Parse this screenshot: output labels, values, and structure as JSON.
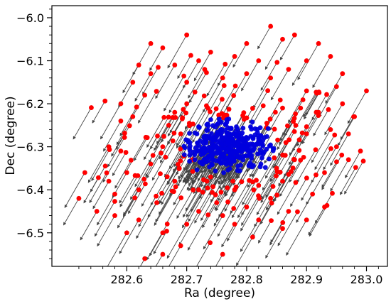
{
  "chart_data": {
    "type": "scatter",
    "title": "",
    "xlabel": "Ra (degree)",
    "ylabel": "Dec (degree)",
    "xlim": [
      282.475,
      283.035
    ],
    "ylim": [
      -6.578,
      -5.972
    ],
    "xticks": [
      282.6,
      282.7,
      282.8,
      282.9,
      283.0
    ],
    "xtick_labels": [
      "282.6",
      "282.7",
      "282.8",
      "282.9",
      "283.0"
    ],
    "yticks": [
      -6.5,
      -6.4,
      -6.3,
      -6.2,
      -6.1,
      -6.0
    ],
    "ytick_labels": [
      "−6.5",
      "−6.4",
      "−6.3",
      "−6.2",
      "−6.1",
      "−6.0"
    ],
    "grid": false,
    "legend": "none",
    "colors": {
      "outer": "#ff0000",
      "core": "#0000dd",
      "arrow": "#444444"
    },
    "series": [
      {
        "group": "outer stars (red)",
        "color": "#ff0000",
        "points": [
          [
            282.53,
            -6.36
          ],
          [
            282.52,
            -6.42
          ],
          [
            282.55,
            -6.45
          ],
          [
            282.57,
            -6.38
          ],
          [
            282.59,
            -6.31
          ],
          [
            282.58,
            -6.46
          ],
          [
            282.6,
            -6.5
          ],
          [
            282.62,
            -6.47
          ],
          [
            282.61,
            -6.23
          ],
          [
            282.63,
            -6.18
          ],
          [
            282.62,
            -6.11
          ],
          [
            282.64,
            -6.06
          ],
          [
            282.66,
            -6.07
          ],
          [
            282.7,
            -6.04
          ],
          [
            282.63,
            -6.56
          ],
          [
            282.66,
            -6.55
          ],
          [
            282.69,
            -6.53
          ],
          [
            282.76,
            -6.55
          ],
          [
            282.66,
            -6.5
          ],
          [
            282.72,
            -6.45
          ],
          [
            282.65,
            -6.43
          ],
          [
            282.68,
            -6.38
          ],
          [
            282.66,
            -6.3
          ],
          [
            282.68,
            -6.22
          ],
          [
            282.7,
            -6.15
          ],
          [
            282.72,
            -6.1
          ],
          [
            282.74,
            -6.08
          ],
          [
            282.78,
            -6.09
          ],
          [
            282.8,
            -6.06
          ],
          [
            282.84,
            -6.02
          ],
          [
            282.88,
            -6.04
          ],
          [
            282.92,
            -6.06
          ],
          [
            282.9,
            -6.1
          ],
          [
            282.94,
            -6.09
          ],
          [
            282.96,
            -6.13
          ],
          [
            282.9,
            -6.17
          ],
          [
            282.96,
            -6.2
          ],
          [
            282.98,
            -6.23
          ],
          [
            283.0,
            -6.17
          ],
          [
            282.97,
            -6.27
          ],
          [
            282.95,
            -6.3
          ],
          [
            282.97,
            -6.33
          ],
          [
            282.93,
            -6.36
          ],
          [
            282.91,
            -6.41
          ],
          [
            282.93,
            -6.44
          ],
          [
            282.9,
            -6.47
          ],
          [
            282.87,
            -6.45
          ],
          [
            282.84,
            -6.42
          ],
          [
            282.82,
            -6.47
          ],
          [
            282.78,
            -6.48
          ],
          [
            282.75,
            -6.43
          ],
          [
            282.72,
            -6.4
          ],
          [
            282.8,
            -6.44
          ],
          [
            282.86,
            -6.38
          ],
          [
            282.88,
            -6.33
          ],
          [
            282.9,
            -6.27
          ],
          [
            282.86,
            -6.21
          ],
          [
            282.84,
            -6.14
          ],
          [
            282.8,
            -6.13
          ],
          [
            282.76,
            -6.14
          ],
          [
            282.7,
            -6.2
          ],
          [
            282.69,
            -6.27
          ],
          [
            282.71,
            -6.33
          ],
          [
            282.74,
            -6.37
          ],
          [
            282.78,
            -6.4
          ],
          [
            282.82,
            -6.39
          ],
          [
            282.85,
            -6.35
          ],
          [
            282.89,
            -6.21
          ],
          [
            282.92,
            -6.22
          ],
          [
            282.94,
            -6.26
          ],
          [
            282.87,
            -6.12
          ],
          [
            282.82,
            -6.1
          ],
          [
            282.73,
            -6.12
          ],
          [
            282.67,
            -6.25
          ],
          [
            282.64,
            -6.34
          ],
          [
            282.62,
            -6.4
          ],
          [
            282.6,
            -6.36
          ],
          [
            282.57,
            -6.3
          ],
          [
            282.59,
            -6.24
          ],
          [
            282.61,
            -6.15
          ],
          [
            282.64,
            -6.13
          ],
          [
            282.68,
            -6.11
          ],
          [
            282.86,
            -6.05
          ],
          [
            282.95,
            -6.16
          ],
          [
            282.99,
            -6.31
          ],
          [
            282.86,
            -6.49
          ],
          [
            282.7,
            -6.48
          ],
          [
            282.58,
            -6.41
          ],
          [
            282.76,
            -6.46
          ],
          [
            282.81,
            -6.51
          ]
        ]
      },
      {
        "group": "cluster core (blue)",
        "color": "#0000dd",
        "center": [
          282.77,
          -6.3
        ],
        "spread": [
          0.065,
          0.055
        ],
        "count": 360
      }
    ],
    "arrows": {
      "direction": "south-west",
      "d_ra": -0.028,
      "d_dec": -0.068
    }
  }
}
